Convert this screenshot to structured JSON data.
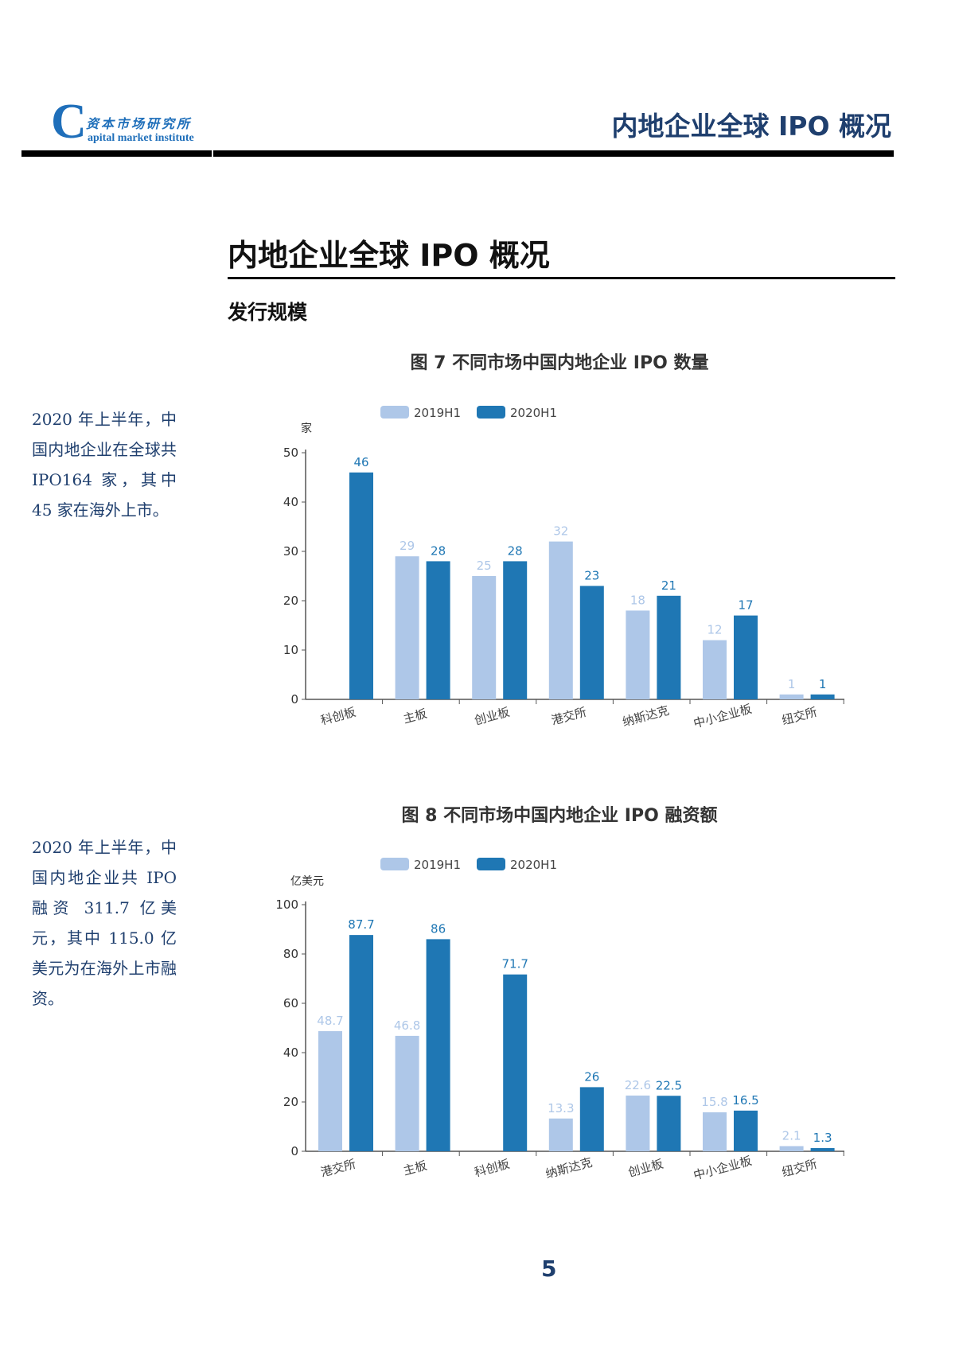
{
  "header": {
    "logo_cn": "资本市场研究所",
    "logo_en": "apital market institute",
    "logo_c": "C",
    "title": "内地企业全球 IPO 概况"
  },
  "main_title": "内地企业全球 IPO 概况",
  "section": "发行规模",
  "side_notes": [
    "2020 年上半年，中国内地企业在全球共 IPO164 家，其中 45 家在海外上市。",
    "2020 年上半年，中国内地企业共 IPO 融资 311.7 亿美元，其中 115.0 亿美元为在海外上市融资。"
  ],
  "page_number": "5",
  "colors": {
    "2019H1": "#aec7e8",
    "2020H1": "#1f77b4"
  },
  "chart_data": [
    {
      "type": "bar",
      "title": "图 7  不同市场中国内地企业 IPO 数量",
      "ylabel": "家",
      "ylim": [
        0,
        50
      ],
      "yticks": [
        0,
        10,
        20,
        30,
        40,
        50
      ],
      "legend": "top",
      "categories": [
        "科创板",
        "主板",
        "创业板",
        "港交所",
        "纳斯达克",
        "中小企业板",
        "纽交所"
      ],
      "series": [
        {
          "name": "2019H1",
          "values": [
            null,
            29,
            25,
            32,
            18,
            12,
            1
          ]
        },
        {
          "name": "2020H1",
          "values": [
            46,
            28,
            28,
            23,
            21,
            17,
            1
          ]
        }
      ]
    },
    {
      "type": "bar",
      "title": "图 8   不同市场中国内地企业 IPO 融资额",
      "ylabel": "亿美元",
      "ylim": [
        0,
        100
      ],
      "yticks": [
        0,
        20,
        40,
        60,
        80,
        100
      ],
      "legend": "top",
      "categories": [
        "港交所",
        "主板",
        "科创板",
        "纳斯达克",
        "创业板",
        "中小企业板",
        "纽交所"
      ],
      "series": [
        {
          "name": "2019H1",
          "values": [
            48.7,
            46.8,
            null,
            13.3,
            22.6,
            15.8,
            2.1
          ]
        },
        {
          "name": "2020H1",
          "values": [
            87.7,
            86,
            71.7,
            26,
            22.5,
            16.5,
            1.3
          ]
        }
      ]
    }
  ]
}
